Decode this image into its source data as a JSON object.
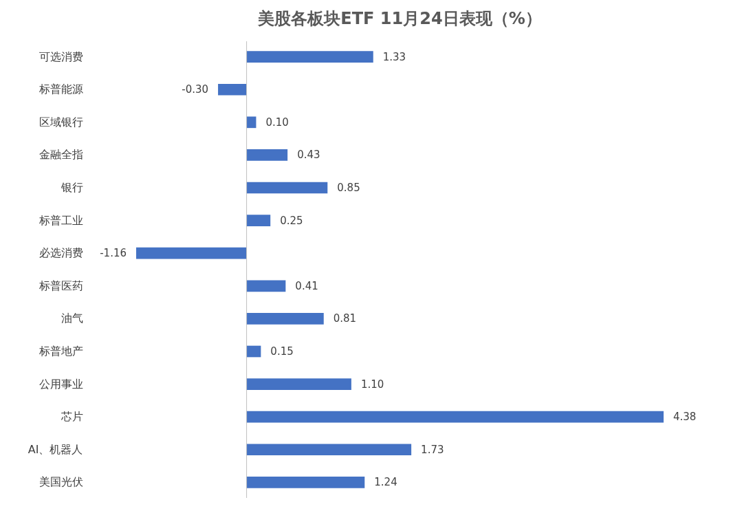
{
  "chart_data": {
    "type": "bar",
    "orientation": "horizontal",
    "title": "美股各板块ETF  11月24日表现（%）",
    "categories": [
      "可选消费",
      "标普能源",
      "区域银行",
      "金融全指",
      "银行",
      "标普工业",
      "必选消费",
      "标普医药",
      "油气",
      "标普地产",
      "公用事业",
      "芯片",
      "AI、机器人",
      "美国光伏"
    ],
    "values": [
      1.33,
      -0.3,
      0.1,
      0.43,
      0.85,
      0.25,
      -1.16,
      0.41,
      0.81,
      0.15,
      1.1,
      4.38,
      1.73,
      1.24
    ],
    "value_labels": [
      "1.33",
      "-0.30",
      "0.10",
      "0.43",
      "0.85",
      "0.25",
      "-1.16",
      "0.41",
      "0.81",
      "0.15",
      "1.10",
      "4.38",
      "1.73",
      "1.24"
    ],
    "color": "#4472c4",
    "tick_labels": "y"
  }
}
